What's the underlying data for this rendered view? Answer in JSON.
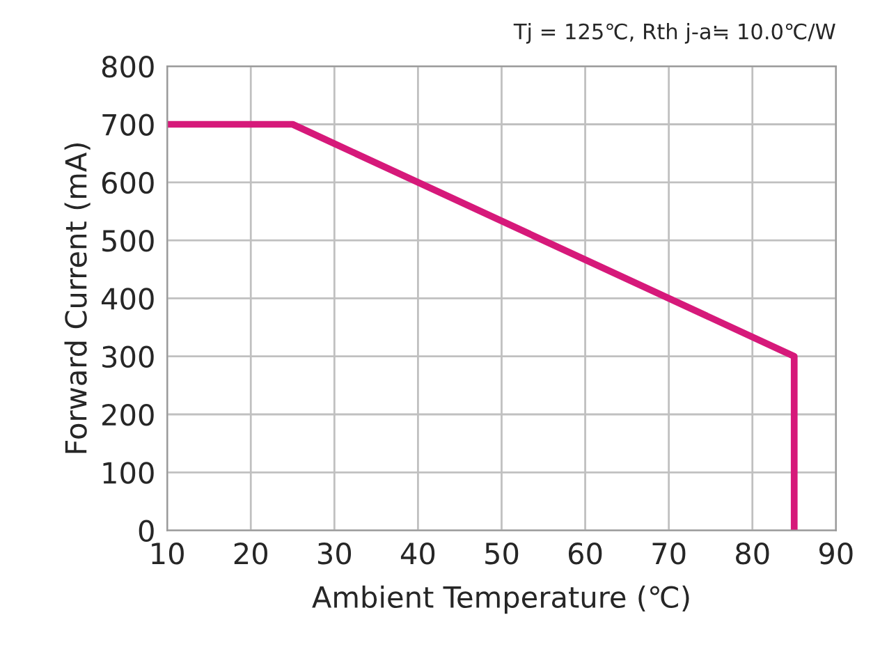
{
  "chart_data": {
    "type": "line",
    "title": "Tj = 125℃, Rth j-a≒ 10.0℃/W",
    "xlabel": "Ambient Temperature (℃)",
    "ylabel": "Forward Current (mA)",
    "series": [
      {
        "color": "#d6197a",
        "x": [
          10,
          25,
          85,
          85
        ],
        "values": [
          700,
          700,
          300,
          0
        ]
      }
    ],
    "xlim": [
      10,
      90
    ],
    "xticks": [
      10,
      20,
      30,
      40,
      50,
      60,
      70,
      80,
      90
    ],
    "ylim": [
      0,
      800
    ],
    "yticks": [
      0,
      100,
      200,
      300,
      400,
      500,
      600,
      700,
      800
    ],
    "grid": true,
    "legend": false,
    "marker": "none",
    "line_style": "solid"
  }
}
